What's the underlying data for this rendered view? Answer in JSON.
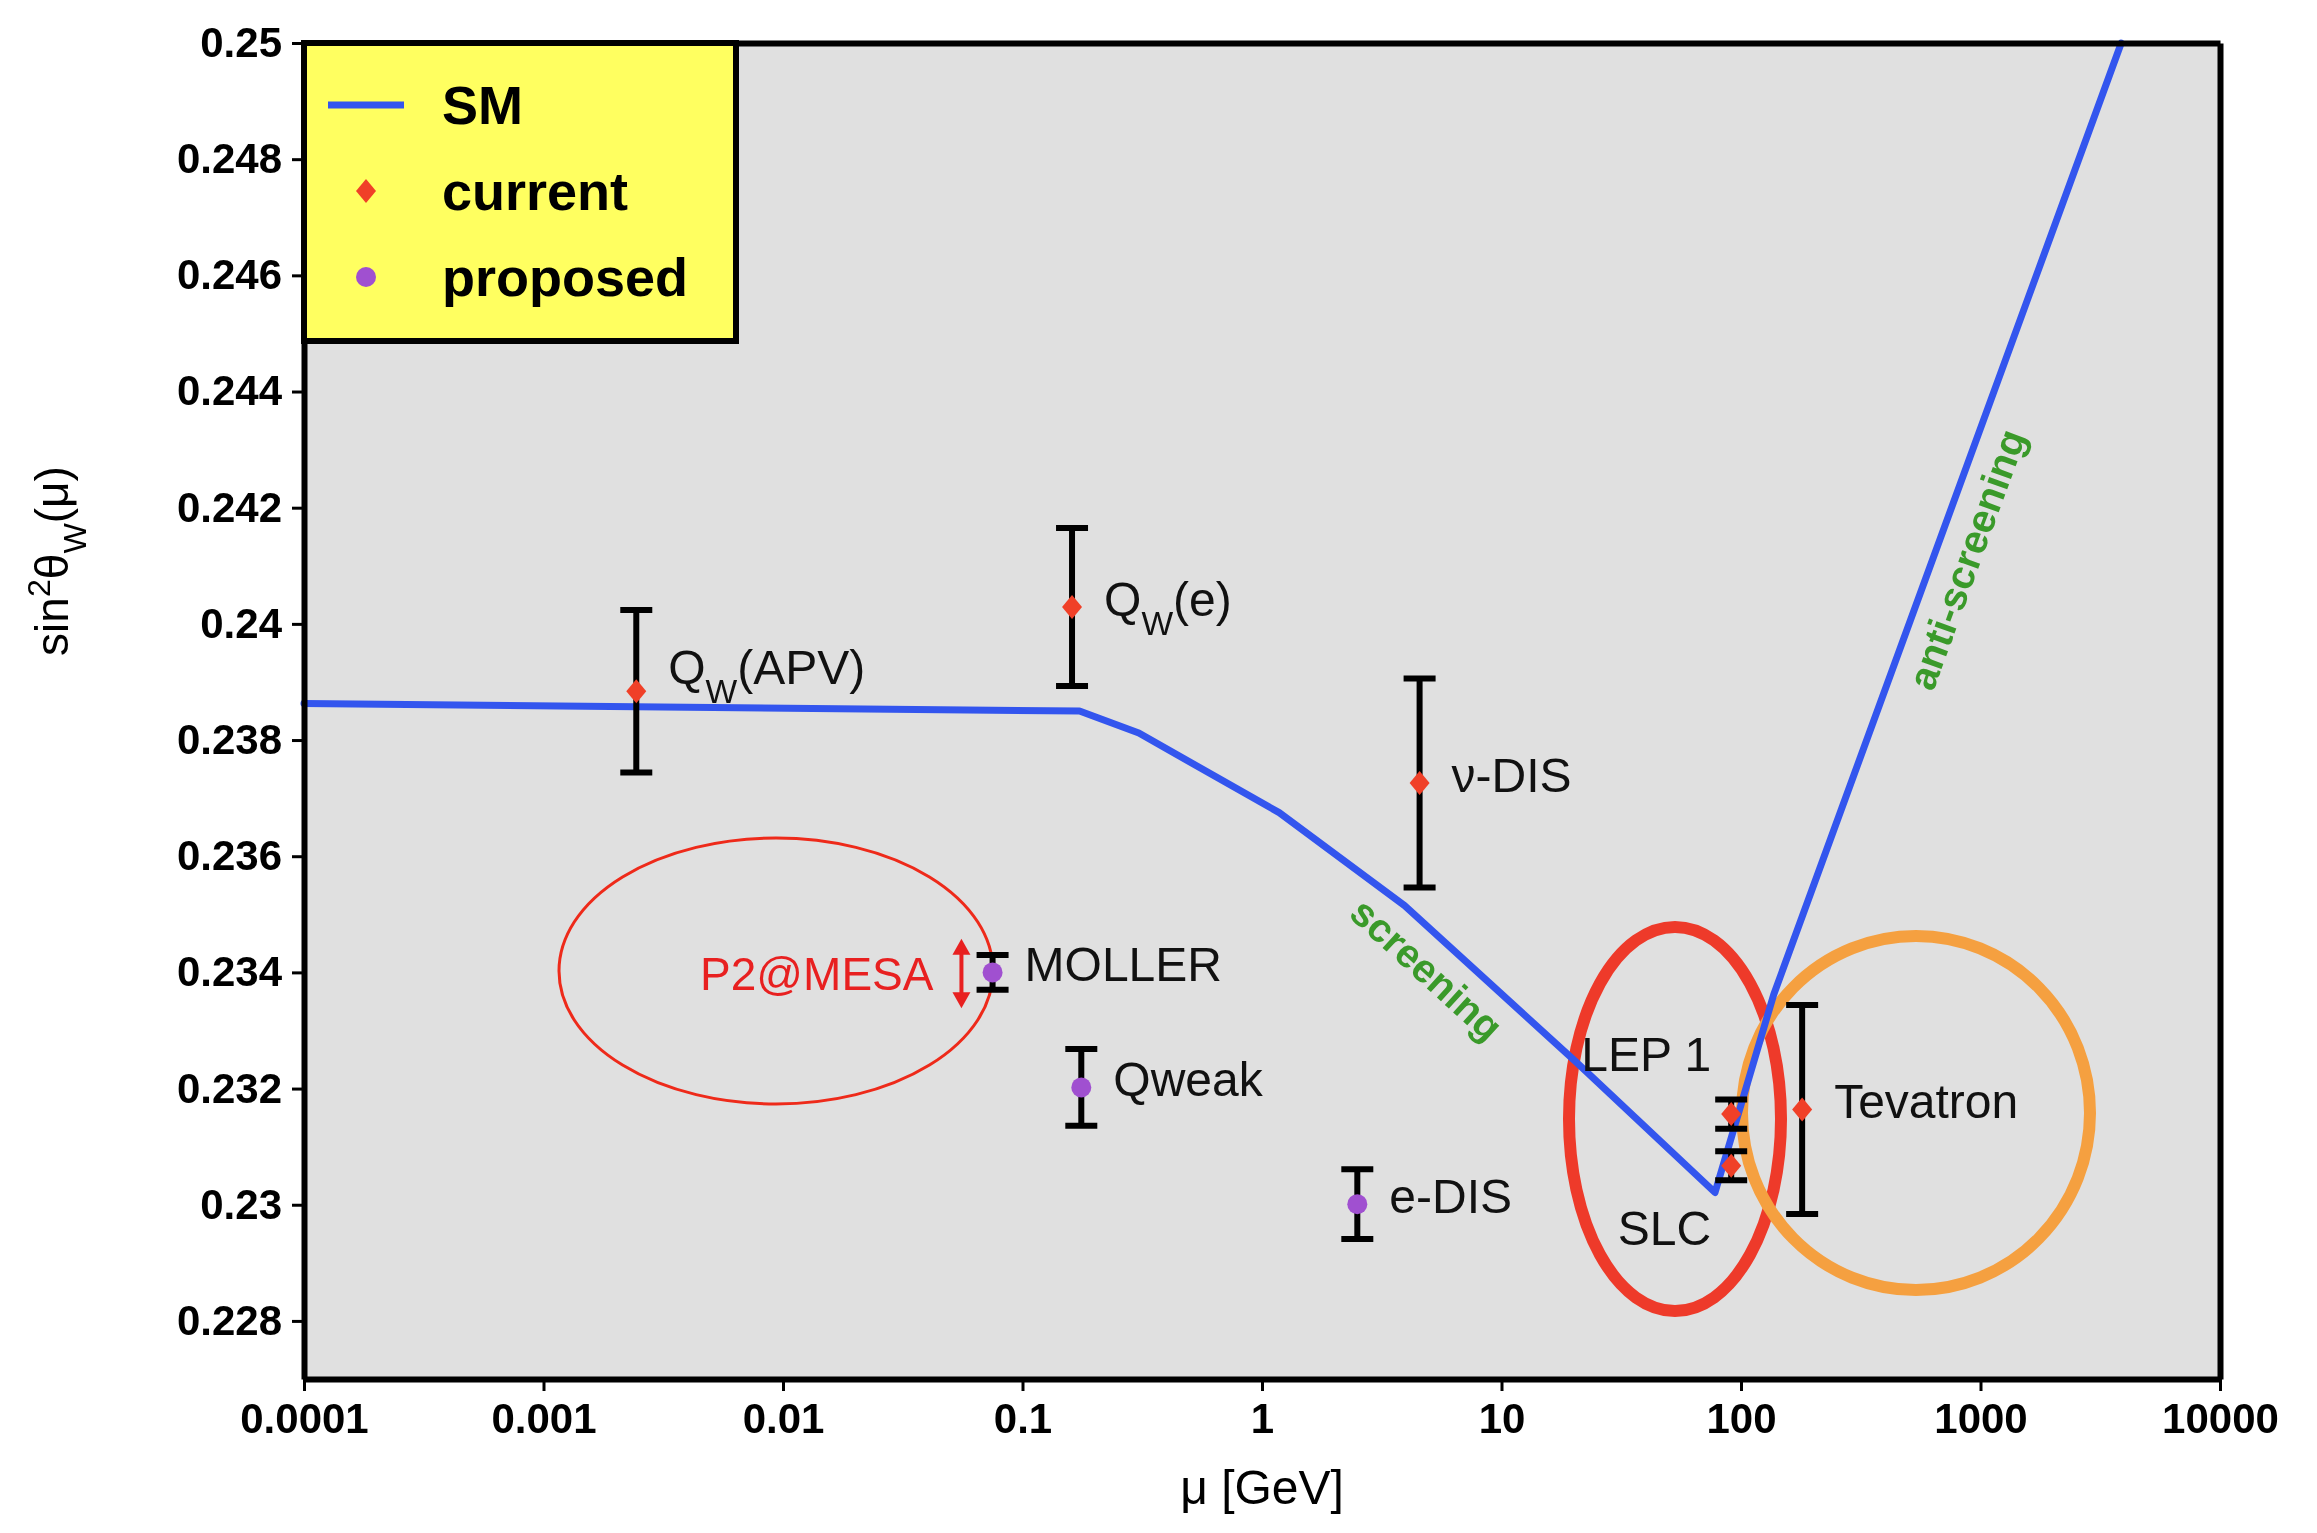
{
  "chart_data": {
    "type": "scatter",
    "xlabel": "μ [GeV]",
    "ylabel": "sin$^{2}$θ$_{W}$(μ)",
    "log": "x",
    "xlim": [
      0.0001,
      10000
    ],
    "ylim": [
      0.227,
      0.25
    ],
    "xticks": [
      0.0001,
      0.001,
      0.01,
      0.1,
      1,
      10,
      100,
      1000,
      10000
    ],
    "yticks": [
      0.228,
      0.23,
      0.232,
      0.234,
      0.236,
      0.238,
      0.24,
      0.242,
      0.244,
      0.246,
      0.248,
      0.25
    ],
    "legend": "top left",
    "series": [
      {
        "name": "SM",
        "type": "line",
        "color": "#3355ee",
        "marker": "none",
        "x": [
          0.0001,
          0.173,
          0.306,
          1.18,
          3.94,
          20.2,
          77.9,
          137,
          3870
        ],
        "values": [
          0.23863,
          0.2385,
          0.23812,
          0.23675,
          0.23515,
          0.23248,
          0.23021,
          0.23362,
          0.25
        ]
      },
      {
        "name": "current",
        "color": "#f04028",
        "marker": "diamond",
        "x": [
          0.00244,
          0.161,
          4.55,
          91,
          91,
          180
        ],
        "values": [
          0.23884,
          0.24029,
          0.23726,
          0.23156,
          0.23067,
          0.23164
        ],
        "errors": [
          0.0014,
          0.00136,
          0.0018,
          0.00025,
          0.00025,
          0.0018
        ],
        "value_labels": [
          "Q$_{W}$(APV)",
          "Q$_{W}$(e)",
          "ν-DIS",
          "LEP 1",
          "SLC",
          "Tevatron"
        ]
      },
      {
        "name": "proposed",
        "color": "#a050d0",
        "marker": "circle",
        "x": [
          0.075,
          0.176,
          2.5
        ],
        "values": [
          0.234,
          0.23202,
          0.23001
        ],
        "errors": [
          0.0003,
          0.00066,
          0.0006
        ],
        "value_labels": [
          "MOLLER",
          "Qweak",
          "e-DIS"
        ]
      },
      {
        "name": "P2@MESA",
        "type": "line",
        "color": "#e82020",
        "marker": "triangle",
        "x": [
          0.0556,
          0.0556
        ],
        "values": [
          0.23444,
          0.23352
        ]
      }
    ],
    "annotations": [
      {
        "text": "screening",
        "x": 6,
        "y": 0.23446
      },
      {
        "text": "anti-screening",
        "x": 656,
        "y": 0.2413
      }
    ]
  }
}
